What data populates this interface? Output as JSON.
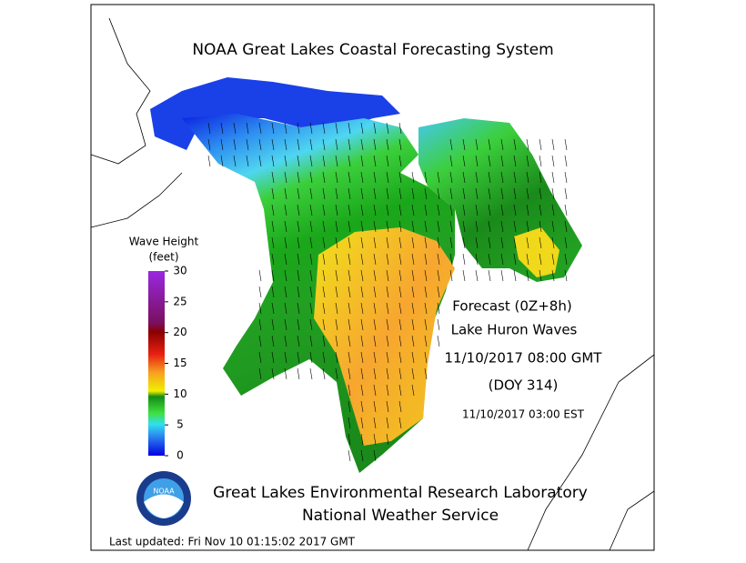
{
  "title": "NOAA Great Lakes Coastal Forecasting System",
  "legend": {
    "title": [
      "Wave Height",
      "(feet)"
    ],
    "ticks": [
      0,
      5,
      10,
      15,
      20,
      25,
      30
    ],
    "range": [
      0,
      30
    ]
  },
  "forecast": [
    "Forecast (0Z+8h)",
    "Lake Huron Waves",
    "11/10/2017 08:00 GMT",
    "(DOY 314)",
    "11/10/2017 03:00 EST"
  ],
  "credits": [
    "Great Lakes Environmental Research Laboratory",
    "National Weather Service"
  ],
  "logo_text": "NOAA",
  "last_updated": "Last updated: Fri Nov 10 01:15:02 2017 GMT"
}
